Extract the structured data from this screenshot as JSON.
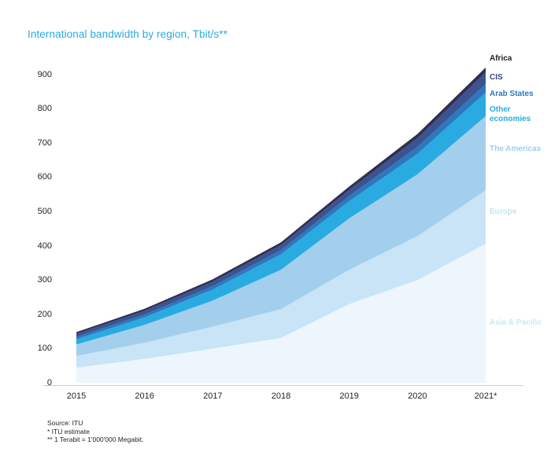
{
  "title": "International bandwidth by region, Tbit/s**",
  "footer": {
    "source": "Source: ITU",
    "estimate": "* ITU estimate",
    "terabit": "** 1 Terabit = 1'000'000 Megabit."
  },
  "chart_data": {
    "type": "area",
    "stacked": true,
    "title": "International bandwidth by region, Tbit/s**",
    "xlabel": "",
    "ylabel": "Tbit/s",
    "grid": false,
    "legend_position": "right",
    "ylim": [
      0,
      950
    ],
    "yticks": [
      0,
      100,
      200,
      300,
      400,
      500,
      600,
      700,
      800,
      900
    ],
    "x": [
      "2015",
      "2016",
      "2017",
      "2018",
      "2019",
      "2020",
      "2021*"
    ],
    "series": [
      {
        "name": "Asia & Pacific",
        "color": "#ecf6fc",
        "values": [
          44,
          70,
          100,
          131,
          230,
          300,
          406
        ]
      },
      {
        "name": "Europe",
        "color": "#c8e4f6",
        "values": [
          34,
          47,
          64,
          84,
          100,
          128,
          156
        ]
      },
      {
        "name": "The Americas",
        "color": "#a3cfed",
        "values": [
          34,
          52,
          76,
          115,
          150,
          180,
          216
        ]
      },
      {
        "name": "Other economies",
        "color": "#29abe2",
        "values": [
          15,
          22,
          32,
          45,
          50,
          60,
          69
        ]
      },
      {
        "name": "Arab States",
        "color": "#2d78bd",
        "values": [
          7,
          8,
          10,
          12,
          15,
          20,
          25
        ]
      },
      {
        "name": "CIS",
        "color": "#3a5492",
        "values": [
          9,
          11,
          13,
          15,
          18,
          26,
          34
        ]
      },
      {
        "name": "Africa",
        "color": "#312f51",
        "values": [
          5,
          6,
          7,
          8,
          10,
          12,
          14
        ]
      }
    ],
    "totals": [
      148,
      216,
      302,
      410,
      573,
      726,
      920
    ],
    "legend": [
      {
        "label": "Africa",
        "color": "#231f20"
      },
      {
        "label": "CIS",
        "color": "#324a85"
      },
      {
        "label": "Arab States",
        "color": "#2d78bd"
      },
      {
        "label": "Other economies",
        "color": "#29abe2"
      },
      {
        "label": "The Americas",
        "color": "#a0cdec"
      },
      {
        "label": "Europe",
        "color": "#c6e3f5"
      },
      {
        "label": "Asia & Pacific",
        "color": "#c9e7f7"
      }
    ]
  }
}
